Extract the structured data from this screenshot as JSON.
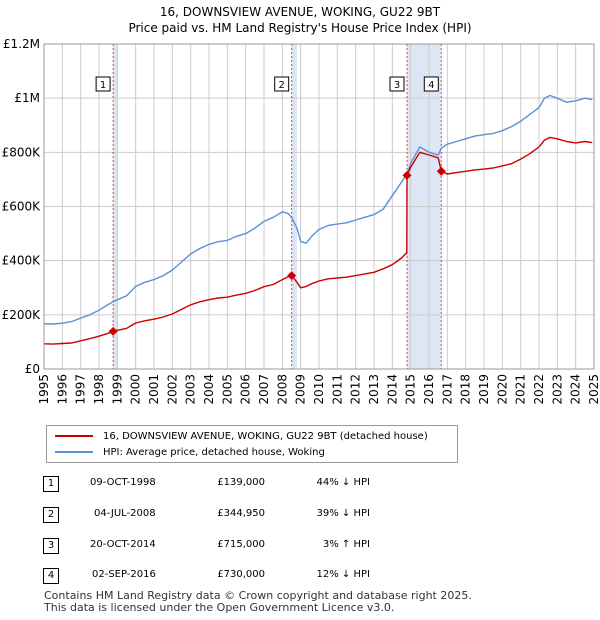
{
  "title": "16, DOWNSVIEW AVENUE, WOKING, GU22 9BT",
  "subtitle": "Price paid vs. HM Land Registry's House Price Index (HPI)",
  "colors": {
    "red": "#cc0000",
    "blue": "#5b8fd6",
    "band": "#dde6f5",
    "grid": "#cccccc"
  },
  "chart_data": {
    "type": "line",
    "title": "16, DOWNSVIEW AVENUE, WOKING, GU22 9BT",
    "xlim": [
      1995,
      2025
    ],
    "ylim": [
      0,
      1200000
    ],
    "yticks": [
      {
        "v": 0,
        "label": "£0"
      },
      {
        "v": 200000,
        "label": "£200K"
      },
      {
        "v": 400000,
        "label": "£400K"
      },
      {
        "v": 600000,
        "label": "£600K"
      },
      {
        "v": 800000,
        "label": "£800K"
      },
      {
        "v": 1000000,
        "label": "£1M"
      },
      {
        "v": 1200000,
        "label": "£1.2M"
      }
    ],
    "xticks": [
      "1995",
      "1996",
      "1997",
      "1998",
      "1999",
      "2000",
      "2001",
      "2002",
      "2003",
      "2004",
      "2005",
      "2006",
      "2007",
      "2008",
      "2009",
      "2010",
      "2011",
      "2012",
      "2013",
      "2014",
      "2015",
      "2016",
      "2017",
      "2018",
      "2019",
      "2020",
      "2021",
      "2022",
      "2023",
      "2024",
      "2025"
    ],
    "series": [
      {
        "name": "HPI: Average price, detached house, Woking",
        "color": "#5b8fd6",
        "x": [
          1995.0,
          1995.5,
          1996.0,
          1996.5,
          1997.0,
          1997.5,
          1998.0,
          1998.5,
          1998.77,
          1999.0,
          1999.5,
          2000.0,
          2000.5,
          2001.0,
          2001.5,
          2002.0,
          2002.5,
          2003.0,
          2003.5,
          2004.0,
          2004.5,
          2005.0,
          2005.5,
          2006.0,
          2006.5,
          2007.0,
          2007.5,
          2008.0,
          2008.3,
          2008.5,
          2008.8,
          2009.0,
          2009.3,
          2009.6,
          2010.0,
          2010.5,
          2011.0,
          2011.5,
          2012.0,
          2012.5,
          2013.0,
          2013.5,
          2014.0,
          2014.5,
          2014.8,
          2015.0,
          2015.5,
          2016.0,
          2016.5,
          2016.67,
          2017.0,
          2017.5,
          2018.0,
          2018.5,
          2019.0,
          2019.5,
          2020.0,
          2020.5,
          2021.0,
          2021.5,
          2022.0,
          2022.3,
          2022.6,
          2023.0,
          2023.5,
          2024.0,
          2024.5,
          2024.9
        ],
        "values": [
          167000,
          166000,
          169000,
          175000,
          188000,
          200000,
          217000,
          238000,
          248000,
          256000,
          270000,
          305000,
          320000,
          330000,
          345000,
          365000,
          395000,
          425000,
          445000,
          460000,
          470000,
          475000,
          490000,
          500000,
          520000,
          545000,
          560000,
          580000,
          575000,
          560000,
          520000,
          470000,
          465000,
          490000,
          515000,
          530000,
          535000,
          540000,
          550000,
          560000,
          570000,
          590000,
          640000,
          690000,
          720000,
          760000,
          820000,
          800000,
          790000,
          815000,
          830000,
          840000,
          850000,
          860000,
          865000,
          870000,
          880000,
          895000,
          915000,
          940000,
          965000,
          1000000,
          1010000,
          1000000,
          985000,
          990000,
          1000000,
          995000
        ]
      },
      {
        "name": "16, DOWNSVIEW AVENUE, WOKING, GU22 9BT (detached house)",
        "color": "#cc0000",
        "x": [
          1995.0,
          1995.5,
          1996.0,
          1996.5,
          1997.0,
          1997.5,
          1998.0,
          1998.5,
          1998.77,
          1999.0,
          1999.5,
          2000.0,
          2000.5,
          2001.0,
          2001.5,
          2002.0,
          2002.5,
          2003.0,
          2003.5,
          2004.0,
          2004.5,
          2005.0,
          2005.5,
          2006.0,
          2006.5,
          2007.0,
          2007.5,
          2008.0,
          2008.3,
          2008.51,
          2008.8,
          2009.0,
          2009.3,
          2009.6,
          2010.0,
          2010.5,
          2011.0,
          2011.5,
          2012.0,
          2012.5,
          2013.0,
          2013.5,
          2014.0,
          2014.5,
          2014.79,
          2014.8,
          2015.0,
          2015.5,
          2016.0,
          2016.5,
          2016.67,
          2017.0,
          2017.5,
          2018.0,
          2018.5,
          2019.0,
          2019.5,
          2020.0,
          2020.5,
          2021.0,
          2021.5,
          2022.0,
          2022.3,
          2022.6,
          2023.0,
          2023.5,
          2024.0,
          2024.5,
          2024.9
        ],
        "values": [
          93000,
          92000,
          94000,
          96000,
          104000,
          112000,
          121000,
          132000,
          139000,
          143000,
          150000,
          170000,
          178000,
          184000,
          192000,
          203000,
          220000,
          237000,
          248000,
          256000,
          262000,
          265000,
          273000,
          279000,
          290000,
          304000,
          312000,
          330000,
          340000,
          344950,
          320000,
          300000,
          305000,
          315000,
          325000,
          333000,
          336000,
          339000,
          345000,
          351000,
          357000,
          370000,
          385000,
          410000,
          430000,
          715000,
          745000,
          800000,
          790000,
          780000,
          730000,
          720000,
          725000,
          730000,
          735000,
          738000,
          742000,
          750000,
          758000,
          775000,
          795000,
          820000,
          845000,
          855000,
          850000,
          840000,
          835000,
          840000,
          836000
        ]
      }
    ],
    "sales": [
      {
        "id": "1",
        "x": 1998.77,
        "value": 139000
      },
      {
        "id": "2",
        "x": 2008.51,
        "value": 344950
      },
      {
        "id": "3",
        "x": 2014.8,
        "value": 715000
      },
      {
        "id": "4",
        "x": 2016.67,
        "value": 730000
      }
    ],
    "bands": [
      [
        1998.77,
        1999.0
      ],
      [
        2008.51,
        2008.8
      ],
      [
        2014.8,
        2016.67
      ]
    ]
  },
  "legend": {
    "property": "16, DOWNSVIEW AVENUE, WOKING, GU22 9BT (detached house)",
    "hpi": "HPI: Average price, detached house, Woking"
  },
  "sales_table": [
    {
      "id": "1",
      "date": "09-OCT-1998",
      "price": "£139,000",
      "hpi": "44% ↓ HPI"
    },
    {
      "id": "2",
      "date": "04-JUL-2008",
      "price": "£344,950",
      "hpi": "39% ↓ HPI"
    },
    {
      "id": "3",
      "date": "20-OCT-2014",
      "price": "£715,000",
      "hpi": "3% ↑ HPI"
    },
    {
      "id": "4",
      "date": "02-SEP-2016",
      "price": "£730,000",
      "hpi": "12% ↓ HPI"
    }
  ],
  "footer": {
    "line1": "Contains HM Land Registry data © Crown copyright and database right 2025.",
    "line2": "This data is licensed under the Open Government Licence v3.0."
  }
}
